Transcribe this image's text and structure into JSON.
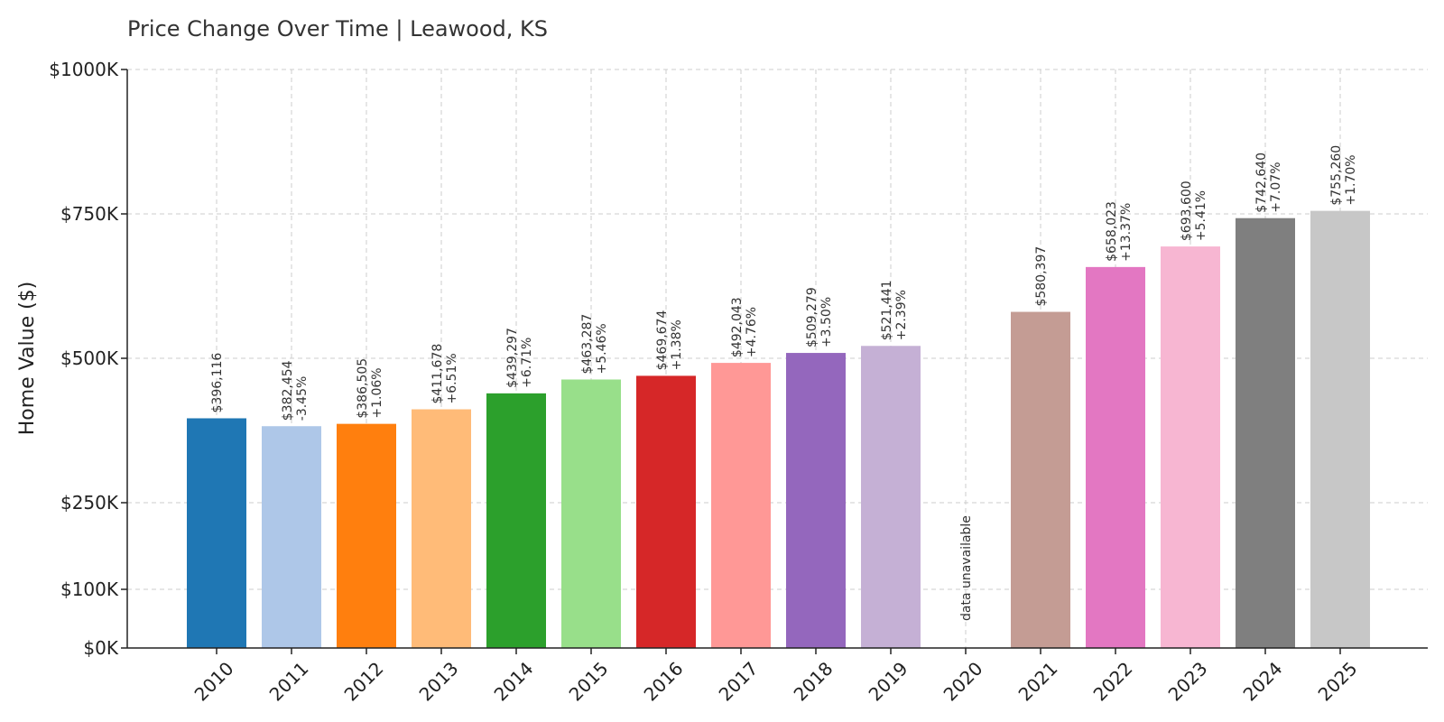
{
  "chart_data": {
    "type": "bar",
    "title": "Price Change Over Time | Leawood, KS",
    "xlabel": "",
    "ylabel": "Home Value ($)",
    "ylim": [
      0,
      1000000
    ],
    "yticks": [
      {
        "value": 0,
        "label": "$0K"
      },
      {
        "value": 100000,
        "label": "$100K"
      },
      {
        "value": 250000,
        "label": "$250K"
      },
      {
        "value": 500000,
        "label": "$500K"
      },
      {
        "value": 750000,
        "label": "$750K"
      },
      {
        "value": 1000000,
        "label": "$1000K"
      }
    ],
    "grid": true,
    "bars": [
      {
        "category": "2010",
        "value": 396116,
        "value_label": "$396,116",
        "change_label": "",
        "color": "#1f77b4"
      },
      {
        "category": "2011",
        "value": 382454,
        "value_label": "$382,454",
        "change_label": "-3.45%",
        "color": "#aec7e8"
      },
      {
        "category": "2012",
        "value": 386505,
        "value_label": "$386,505",
        "change_label": "+1.06%",
        "color": "#ff7f0e"
      },
      {
        "category": "2013",
        "value": 411678,
        "value_label": "$411,678",
        "change_label": "+6.51%",
        "color": "#ffbb78"
      },
      {
        "category": "2014",
        "value": 439297,
        "value_label": "$439,297",
        "change_label": "+6.71%",
        "color": "#2ca02c"
      },
      {
        "category": "2015",
        "value": 463287,
        "value_label": "$463,287",
        "change_label": "+5.46%",
        "color": "#98df8a"
      },
      {
        "category": "2016",
        "value": 469674,
        "value_label": "$469,674",
        "change_label": "+1.38%",
        "color": "#d62728"
      },
      {
        "category": "2017",
        "value": 492043,
        "value_label": "$492,043",
        "change_label": "+4.76%",
        "color": "#ff9896"
      },
      {
        "category": "2018",
        "value": 509279,
        "value_label": "$509,279",
        "change_label": "+3.50%",
        "color": "#9467bd"
      },
      {
        "category": "2019",
        "value": 521441,
        "value_label": "$521,441",
        "change_label": "+2.39%",
        "color": "#c5b0d5"
      },
      {
        "category": "2020",
        "value": null,
        "value_label": "data unavailable",
        "change_label": "",
        "color": "#8c564b"
      },
      {
        "category": "2021",
        "value": 580397,
        "value_label": "$580,397",
        "change_label": "",
        "color": "#c49c94"
      },
      {
        "category": "2022",
        "value": 658023,
        "value_label": "$658,023",
        "change_label": "+13.37%",
        "color": "#e377c2"
      },
      {
        "category": "2023",
        "value": 693600,
        "value_label": "$693,600",
        "change_label": "+5.41%",
        "color": "#f7b6d2"
      },
      {
        "category": "2024",
        "value": 742640,
        "value_label": "$742,640",
        "change_label": "+7.07%",
        "color": "#7f7f7f"
      },
      {
        "category": "2025",
        "value": 755260,
        "value_label": "$755,260",
        "change_label": "+1.70%",
        "color": "#c7c7c7"
      }
    ]
  }
}
